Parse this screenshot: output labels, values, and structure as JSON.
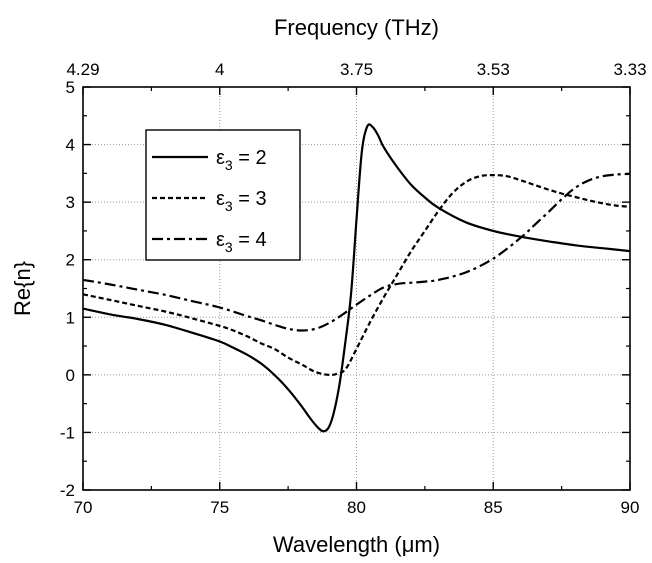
{
  "chart_data": {
    "type": "line",
    "xlabel": "Wavelength (μm)",
    "x2label": "Frequency (THz)",
    "ylabel": "Re{n}",
    "xlim": [
      70,
      90
    ],
    "ylim": [
      -2,
      5
    ],
    "x_ticks": [
      "70",
      "75",
      "80",
      "85",
      "90"
    ],
    "y_ticks": [
      "-2",
      "-1",
      "0",
      "1",
      "2",
      "3",
      "4",
      "5"
    ],
    "top_ticks": [
      {
        "label": "4.29",
        "wavelength": 70
      },
      {
        "label": "4",
        "wavelength": 75
      },
      {
        "label": "3.75",
        "wavelength": 80
      },
      {
        "label": "3.53",
        "wavelength": 85
      },
      {
        "label": "3.33",
        "wavelength": 90
      }
    ],
    "grid": true,
    "legend_position": "top-left",
    "series": [
      {
        "name": "ε3 = 2",
        "symbol": "ε",
        "subscript": "3",
        "value_text": " = 2",
        "dash": "solid",
        "x": [
          70,
          71,
          72,
          73,
          74,
          75,
          75.5,
          76,
          76.5,
          77,
          77.5,
          78,
          78.3,
          78.6,
          78.8,
          79,
          79.2,
          79.4,
          79.6,
          79.8,
          80,
          80.2,
          80.4,
          80.6,
          80.8,
          81,
          81.5,
          82,
          82.5,
          83,
          84,
          85,
          86,
          87,
          88,
          89,
          90
        ],
        "y": [
          1.15,
          1.05,
          0.97,
          0.87,
          0.73,
          0.58,
          0.47,
          0.35,
          0.2,
          0.0,
          -0.25,
          -0.55,
          -0.75,
          -0.92,
          -0.98,
          -0.9,
          -0.6,
          -0.1,
          0.6,
          1.4,
          2.7,
          3.9,
          4.32,
          4.3,
          4.15,
          3.95,
          3.6,
          3.3,
          3.08,
          2.9,
          2.65,
          2.5,
          2.4,
          2.32,
          2.25,
          2.2,
          2.15
        ]
      },
      {
        "name": "ε3 = 3",
        "symbol": "ε",
        "subscript": "3",
        "value_text": " = 3",
        "dash": "dashed",
        "x": [
          70,
          71,
          72,
          73,
          74,
          75,
          75.5,
          76,
          76.5,
          77,
          77.5,
          78,
          78.5,
          79,
          79.3,
          79.6,
          80,
          80.5,
          81,
          81.5,
          82,
          82.5,
          83,
          83.5,
          84,
          84.5,
          85,
          85.5,
          86,
          86.5,
          87,
          87.5,
          88,
          88.5,
          89,
          89.5,
          90
        ],
        "y": [
          1.4,
          1.3,
          1.2,
          1.1,
          0.98,
          0.85,
          0.77,
          0.67,
          0.55,
          0.45,
          0.3,
          0.18,
          0.05,
          0.0,
          0.02,
          0.1,
          0.45,
          0.92,
          1.35,
          1.75,
          2.15,
          2.5,
          2.85,
          3.15,
          3.35,
          3.45,
          3.47,
          3.45,
          3.38,
          3.3,
          3.22,
          3.15,
          3.09,
          3.03,
          2.98,
          2.94,
          2.92
        ]
      },
      {
        "name": "ε3 = 4",
        "symbol": "ε",
        "subscript": "3",
        "value_text": " = 4",
        "dash": "dash-dot",
        "x": [
          70,
          71,
          72,
          73,
          74,
          75,
          76,
          76.5,
          77,
          77.5,
          78,
          78.5,
          79,
          79.5,
          80,
          80.5,
          81,
          81.5,
          82,
          82.5,
          83,
          84,
          85,
          86,
          86.5,
          87,
          87.5,
          88,
          88.5,
          89,
          89.5,
          90
        ],
        "y": [
          1.65,
          1.57,
          1.48,
          1.39,
          1.28,
          1.17,
          1.02,
          0.95,
          0.87,
          0.8,
          0.77,
          0.8,
          0.9,
          1.05,
          1.22,
          1.38,
          1.52,
          1.58,
          1.6,
          1.62,
          1.65,
          1.78,
          2.02,
          2.38,
          2.6,
          2.82,
          3.05,
          3.25,
          3.38,
          3.45,
          3.48,
          3.49
        ]
      }
    ]
  }
}
